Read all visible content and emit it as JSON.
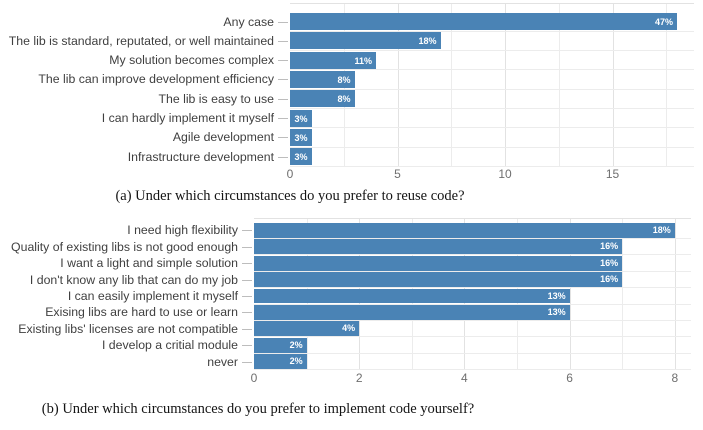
{
  "figure": {
    "background": "#ffffff"
  },
  "chart_data": [
    {
      "type": "bar",
      "orientation": "horizontal",
      "caption": "(a) Under which circumstances do you prefer to reuse code?",
      "categories": [
        "Any case",
        "The lib is standard, reputated, or well maintained",
        "My solution becomes complex",
        "The lib can improve development efficiency",
        "The lib is easy to use",
        "I can hardly implement it myself",
        "Agile development",
        "Infrastructure development"
      ],
      "values": [
        18,
        7,
        4,
        3,
        3,
        1,
        1,
        1
      ],
      "value_labels": [
        "47%",
        "18%",
        "11%",
        "8%",
        "8%",
        "3%",
        "3%",
        "3%"
      ],
      "x_tick_labels": [
        "0",
        "5",
        "10",
        "15"
      ],
      "x_ticks": [
        0,
        5,
        10,
        15
      ],
      "x_minor": [
        2.5,
        7.5,
        12.5,
        17.5
      ],
      "xlim": [
        0,
        18.8
      ],
      "xlabel": "",
      "ylabel": "",
      "grid": "on",
      "legend": "none",
      "bar_color": "#4a83b5"
    },
    {
      "type": "bar",
      "orientation": "horizontal",
      "caption": "(b) Under which circumstances do you prefer to implement code yourself?",
      "categories": [
        "I need high flexibility",
        "Quality of existing libs is not good enough",
        "I want a light and simple solution",
        "I don't know any lib that can do my job",
        "I can easily implement it myself",
        "Exising libs are hard to use or learn",
        "Existing libs' licenses are not compatible",
        "I develop a critial module",
        "never"
      ],
      "values": [
        8,
        7,
        7,
        7,
        6,
        6,
        2,
        1,
        1
      ],
      "value_labels": [
        "18%",
        "16%",
        "16%",
        "16%",
        "13%",
        "13%",
        "4%",
        "2%",
        "2%"
      ],
      "x_tick_labels": [
        "0",
        "2",
        "4",
        "6",
        "8"
      ],
      "x_ticks": [
        0,
        2,
        4,
        6,
        8
      ],
      "x_minor": [
        1,
        3,
        5,
        7
      ],
      "xlim": [
        0,
        8.3
      ],
      "xlabel": "",
      "ylabel": "",
      "grid": "on",
      "legend": "none",
      "bar_color": "#4a83b5"
    }
  ],
  "style": {
    "bar_color": "#4a83b5",
    "value_label_color": "#ffffff",
    "category_label_color": "#3f3f3f",
    "axis_label_color": "#6f6f6f",
    "grid_major_color": "#e2e2e2",
    "grid_minor_color": "#ececec",
    "tick_color": "#bdbdbd",
    "caption_color": "#141414"
  }
}
